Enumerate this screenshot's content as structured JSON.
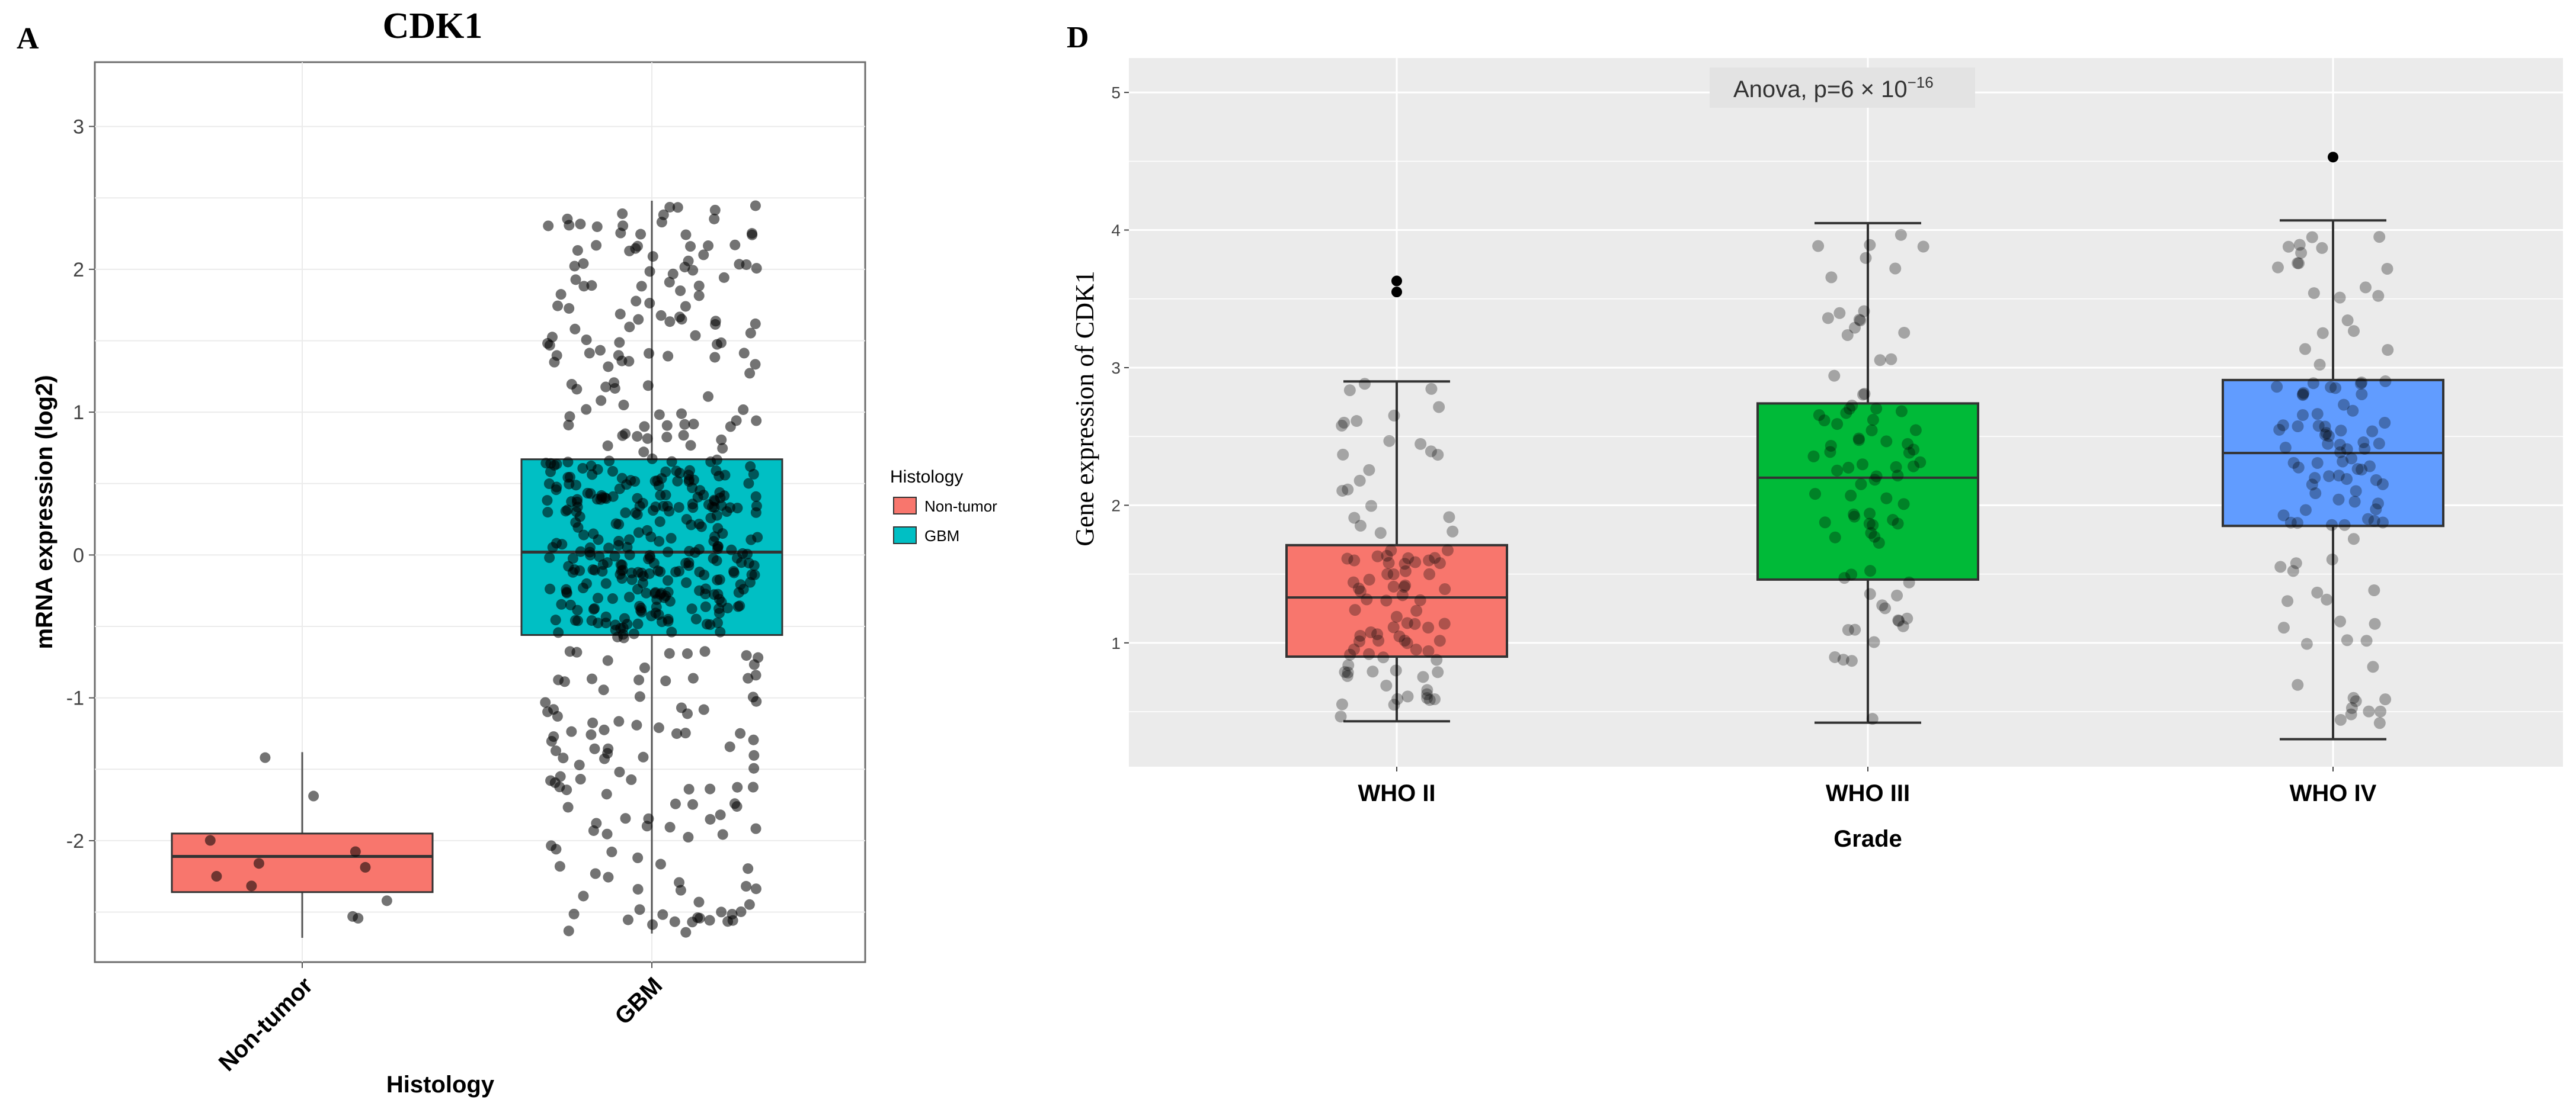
{
  "colors": {
    "nontumor": "#F8766D",
    "gbm": "#00BFC4",
    "who2": "#F8766D",
    "who3": "#00BA38",
    "who4": "#619CFF",
    "panel_bg": "#EBEBEB",
    "points": "#000000"
  },
  "chart_data": [
    {
      "panel_label": "A",
      "type": "boxplot",
      "title": "CDK1",
      "xlabel": "Histology",
      "ylabel": "mRNA expression (log2)",
      "ylim": [
        -2.85,
        3.45
      ],
      "yticks": [
        -2,
        -1,
        0,
        1,
        2,
        3
      ],
      "ytick_labels": [
        "-2",
        "-1",
        "0",
        "1",
        "2",
        "3"
      ],
      "grid": true,
      "legend": {
        "title": "Histology",
        "position": "right",
        "entries": [
          "Non-tumor",
          "GBM"
        ]
      },
      "categories": [
        "Non-tumor",
        "GBM"
      ],
      "boxes": [
        {
          "category": "Non-tumor",
          "whisker_low": -2.68,
          "q1": -2.36,
          "median": -2.11,
          "q3": -1.95,
          "whisker_high": -1.38,
          "color_key": "nontumor",
          "n_points": 11
        },
        {
          "category": "GBM",
          "whisker_low": -2.65,
          "q1": -0.56,
          "median": 0.02,
          "q3": 0.67,
          "whisker_high": 2.48,
          "color_key": "gbm",
          "n_points": 520
        }
      ]
    },
    {
      "panel_label": "D",
      "type": "boxplot",
      "title": "",
      "annotation": "Anova, p=6 × 10",
      "annotation_exponent": "−16",
      "xlabel": "Grade",
      "ylabel": "Gene expression of CDK1",
      "ylim": [
        0.1,
        5.25
      ],
      "yticks": [
        1,
        2,
        3,
        4,
        5
      ],
      "ytick_labels": [
        "1",
        "2",
        "3",
        "4",
        "5"
      ],
      "grid": true,
      "categories": [
        "WHO II",
        "WHO III",
        "WHO IV"
      ],
      "boxes": [
        {
          "category": "WHO II",
          "whisker_low": 0.43,
          "q1": 0.9,
          "median": 1.33,
          "q3": 1.71,
          "whisker_high": 2.9,
          "color_key": "who2",
          "n_points": 95,
          "outliers": [
            3.55,
            3.63
          ]
        },
        {
          "category": "WHO III",
          "whisker_low": 0.42,
          "q1": 1.46,
          "median": 2.2,
          "q3": 2.74,
          "whisker_high": 4.05,
          "color_key": "who3",
          "n_points": 85,
          "outliers": []
        },
        {
          "category": "WHO IV",
          "whisker_low": 0.3,
          "q1": 1.85,
          "median": 2.38,
          "q3": 2.91,
          "whisker_high": 4.07,
          "color_key": "who4",
          "n_points": 110,
          "outliers": [
            4.53
          ]
        }
      ]
    }
  ]
}
